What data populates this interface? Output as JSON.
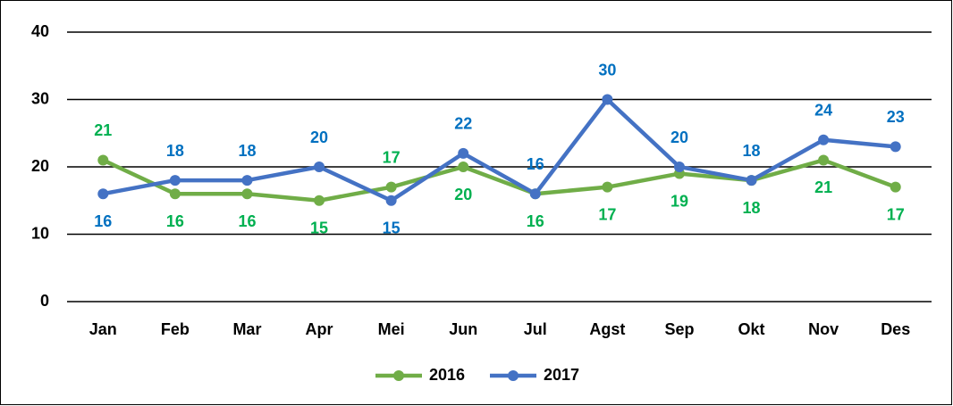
{
  "chart_data": {
    "type": "line",
    "categories": [
      "Jan",
      "Feb",
      "Mar",
      "Apr",
      "Mei",
      "Jun",
      "Jul",
      "Agst",
      "Sep",
      "Okt",
      "Nov",
      "Des"
    ],
    "series": [
      {
        "name": "2016",
        "color": "#70ad47",
        "label_color": "#00b050",
        "values": [
          21,
          16,
          16,
          15,
          17,
          20,
          16,
          17,
          19,
          18,
          21,
          17
        ]
      },
      {
        "name": "2017",
        "color": "#4472c4",
        "label_color": "#0070c0",
        "values": [
          16,
          18,
          18,
          20,
          15,
          22,
          16,
          30,
          20,
          18,
          24,
          23
        ]
      }
    ],
    "ylim": [
      0,
      40
    ],
    "yticks": [
      0,
      10,
      20,
      30,
      40
    ],
    "grid": true,
    "legend": "bottom"
  }
}
